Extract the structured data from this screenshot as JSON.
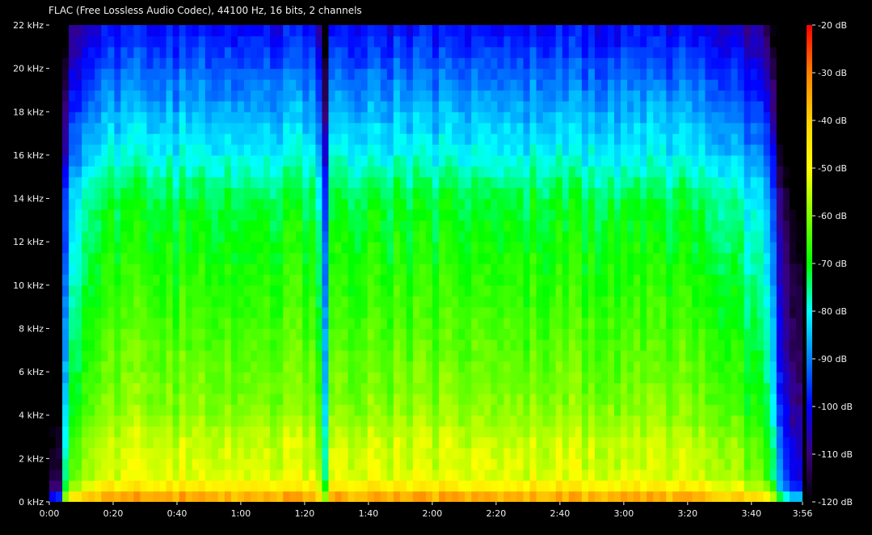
{
  "chart_data": {
    "type": "heatmap",
    "title": "FLAC (Free Lossless Audio Codec), 44100 Hz, 16 bits, 2 channels",
    "xlabel": "",
    "ylabel": "",
    "x_unit": "seconds",
    "x_range": [
      0,
      236
    ],
    "y_unit": "kHz",
    "y_range": [
      0,
      22
    ],
    "x_ticks": [
      {
        "value": 0,
        "label": "0:00"
      },
      {
        "value": 20,
        "label": "0:20"
      },
      {
        "value": 40,
        "label": "0:40"
      },
      {
        "value": 60,
        "label": "1:00"
      },
      {
        "value": 80,
        "label": "1:20"
      },
      {
        "value": 100,
        "label": "1:40"
      },
      {
        "value": 120,
        "label": "2:00"
      },
      {
        "value": 140,
        "label": "2:20"
      },
      {
        "value": 160,
        "label": "2:40"
      },
      {
        "value": 180,
        "label": "3:00"
      },
      {
        "value": 200,
        "label": "3:20"
      },
      {
        "value": 220,
        "label": "3:40"
      },
      {
        "value": 236,
        "label": "3:56"
      }
    ],
    "y_ticks": [
      {
        "value": 0,
        "label": "0 kHz"
      },
      {
        "value": 2,
        "label": "2 kHz"
      },
      {
        "value": 4,
        "label": "4 kHz"
      },
      {
        "value": 6,
        "label": "6 kHz"
      },
      {
        "value": 8,
        "label": "8 kHz"
      },
      {
        "value": 10,
        "label": "10 kHz"
      },
      {
        "value": 12,
        "label": "12 kHz"
      },
      {
        "value": 14,
        "label": "14 kHz"
      },
      {
        "value": 16,
        "label": "16 kHz"
      },
      {
        "value": 18,
        "label": "18 kHz"
      },
      {
        "value": 20,
        "label": "20 kHz"
      },
      {
        "value": 22,
        "label": "22 kHz"
      }
    ],
    "colorbar": {
      "unit": "dB",
      "range": [
        -120,
        -20
      ],
      "ticks": [
        {
          "value": -20,
          "label": "-20 dB"
        },
        {
          "value": -30,
          "label": "-30 dB"
        },
        {
          "value": -40,
          "label": "-40 dB"
        },
        {
          "value": -50,
          "label": "-50 dB"
        },
        {
          "value": -60,
          "label": "-60 dB"
        },
        {
          "value": -70,
          "label": "-70 dB"
        },
        {
          "value": -80,
          "label": "-80 dB"
        },
        {
          "value": -90,
          "label": "-90 dB"
        },
        {
          "value": -100,
          "label": "-100 dB"
        },
        {
          "value": -110,
          "label": "-110 dB"
        },
        {
          "value": -120,
          "label": "-120 dB"
        }
      ],
      "color_stops": [
        {
          "value": -120,
          "color": "#000000"
        },
        {
          "value": -110,
          "color": "#3a007a"
        },
        {
          "value": -100,
          "color": "#0000ff"
        },
        {
          "value": -90,
          "color": "#0080ff"
        },
        {
          "value": -80,
          "color": "#00ffff"
        },
        {
          "value": -70,
          "color": "#00ff00"
        },
        {
          "value": -60,
          "color": "#7fff00"
        },
        {
          "value": -50,
          "color": "#ffff00"
        },
        {
          "value": -40,
          "color": "#ffd000"
        },
        {
          "value": -30,
          "color": "#ff8000"
        },
        {
          "value": -20,
          "color": "#ff0000"
        }
      ]
    },
    "time_profile_db_offset": [
      {
        "t": 0,
        "db": -65
      },
      {
        "t": 3,
        "db": -65
      },
      {
        "t": 6,
        "db": -9
      },
      {
        "t": 12,
        "db": -8
      },
      {
        "t": 15,
        "db": 0
      },
      {
        "t": 84,
        "db": 0
      },
      {
        "t": 86,
        "db": -32
      },
      {
        "t": 88,
        "db": 0
      },
      {
        "t": 200,
        "db": 0
      },
      {
        "t": 212,
        "db": -3
      },
      {
        "t": 216,
        "db": -7
      },
      {
        "t": 222,
        "db": -9
      },
      {
        "t": 226,
        "db": -18
      },
      {
        "t": 229,
        "db": -35
      },
      {
        "t": 236,
        "db": -55
      }
    ],
    "frequency_profile_db": [
      {
        "f": 0,
        "db": -30
      },
      {
        "f": 0.5,
        "db": -42
      },
      {
        "f": 1,
        "db": -52
      },
      {
        "f": 3,
        "db": -55
      },
      {
        "f": 4,
        "db": -59
      },
      {
        "f": 6,
        "db": -62
      },
      {
        "f": 10,
        "db": -67
      },
      {
        "f": 14,
        "db": -72
      },
      {
        "f": 16,
        "db": -80
      },
      {
        "f": 18,
        "db": -86
      },
      {
        "f": 20,
        "db": -93
      },
      {
        "f": 22,
        "db": -100
      }
    ]
  }
}
